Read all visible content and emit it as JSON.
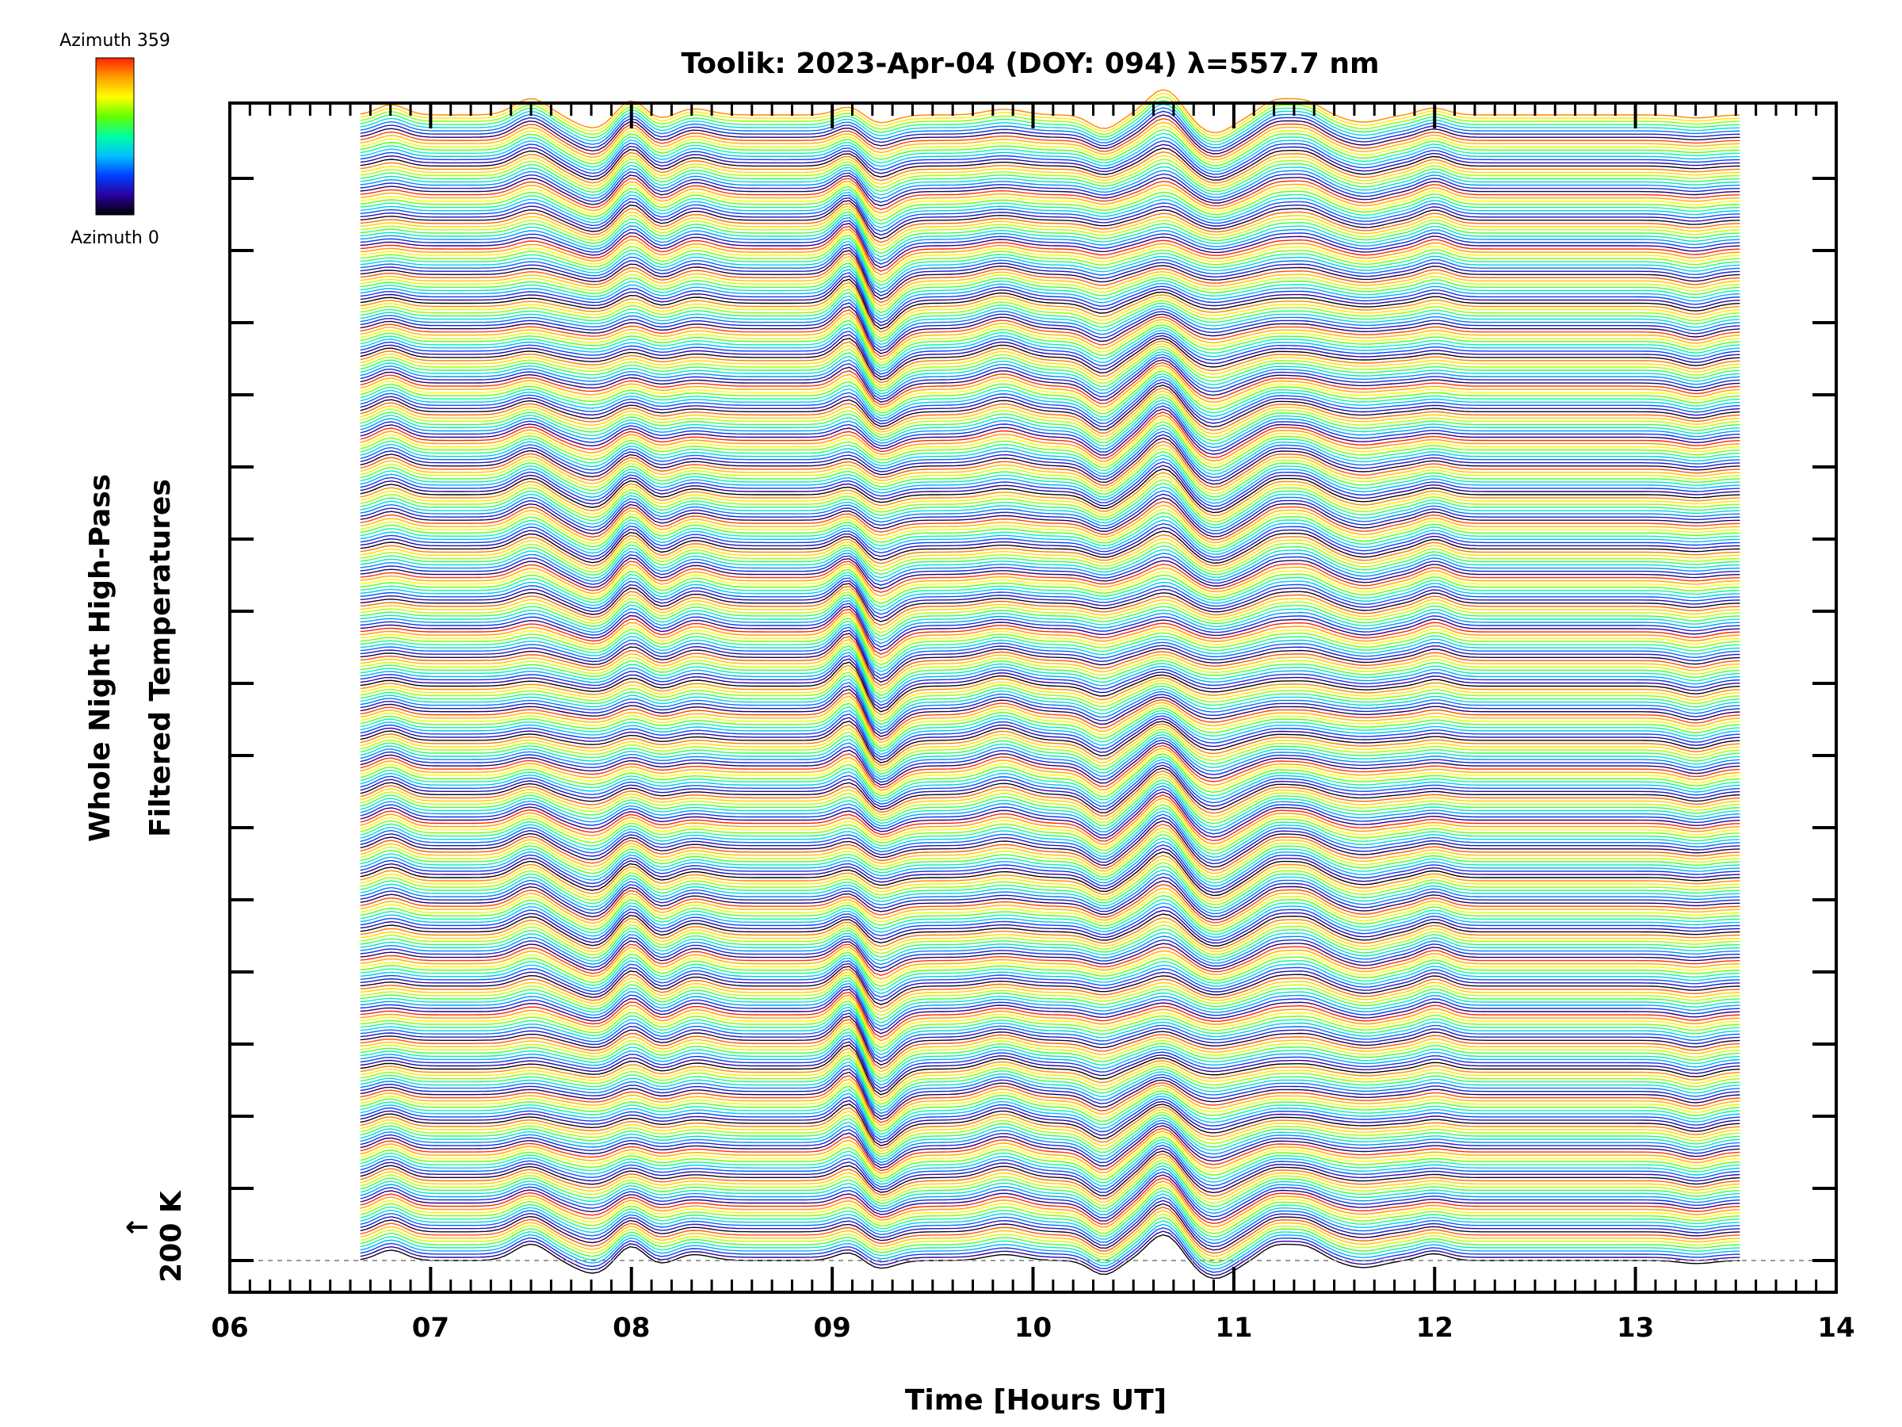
{
  "chart_data": {
    "type": "line",
    "title": "Toolik: 2023-Apr-04 (DOY: 094) λ=557.7 nm",
    "xlabel": "Time [Hours UT]",
    "ylabel_line1": "Whole Night High-Pass",
    "ylabel_line2": "Filtered Temperatures",
    "xlim": [
      6,
      14
    ],
    "x_tick_labels": [
      "06",
      "07",
      "08",
      "09",
      "10",
      "11",
      "12",
      "13",
      "14"
    ],
    "y_scale_label": "200 K",
    "y_scale_arrow": "↑",
    "data_start_hour": 6.65,
    "data_end_hour": 13.52,
    "num_traces": 360,
    "trace_offset_label": "traces stacked by azimuth, offset vertically",
    "colorbar": {
      "top_label": "Azimuth 359",
      "bottom_label": "Azimuth 0",
      "colors": [
        "#000000",
        "#2a00a0",
        "#0040ff",
        "#00c0ff",
        "#00ffa0",
        "#60ff00",
        "#ffff00",
        "#ffa000",
        "#ff2000"
      ]
    },
    "disturbances": [
      {
        "t": 6.8,
        "amp": 0.6
      },
      {
        "t": 7.5,
        "amp": 0.8
      },
      {
        "t": 7.82,
        "amp": -0.7
      },
      {
        "t": 8.0,
        "amp": 1.0
      },
      {
        "t": 8.15,
        "amp": -0.4
      },
      {
        "t": 8.3,
        "amp": 0.5
      },
      {
        "t": 9.1,
        "amp": 1.6
      },
      {
        "t": 9.22,
        "amp": -1.5
      },
      {
        "t": 9.85,
        "amp": 0.6
      },
      {
        "t": 10.35,
        "amp": -0.9
      },
      {
        "t": 10.65,
        "amp": 1.4
      },
      {
        "t": 10.9,
        "amp": -0.9
      },
      {
        "t": 11.2,
        "amp": 0.6
      },
      {
        "t": 11.35,
        "amp": 0.7
      },
      {
        "t": 11.65,
        "amp": -0.4
      },
      {
        "t": 12.0,
        "amp": 0.5
      },
      {
        "t": 13.3,
        "amp": -0.4
      }
    ]
  }
}
